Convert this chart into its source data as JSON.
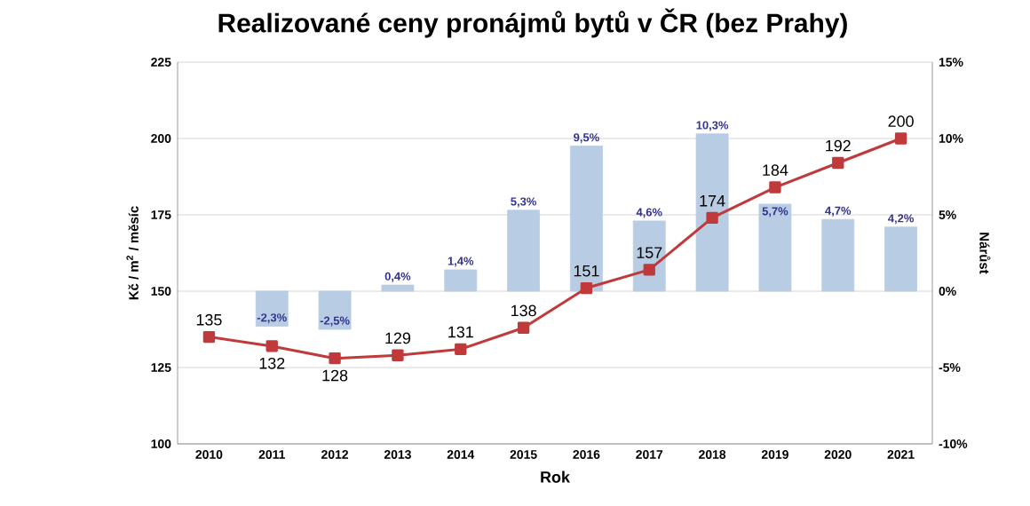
{
  "chart_data": {
    "type": "line",
    "title": "Realizované ceny pronájmů bytů v ČR (bez Prahy)",
    "xlabel": "Rok",
    "ylabel": "Kč / m$^{2}$ / měsíc",
    "y2label": "Nárůst",
    "categories": [
      "2010",
      "2011",
      "2012",
      "2013",
      "2014",
      "2015",
      "2016",
      "2017",
      "2018",
      "2019",
      "2020",
      "2021"
    ],
    "series": [
      {
        "type": "bar",
        "axis": "y2",
        "color": "#b8cce4",
        "values": [
          null,
          -2.3,
          -2.5,
          0.4,
          1.4,
          5.3,
          9.5,
          4.6,
          10.3,
          5.7,
          4.7,
          4.2
        ],
        "value_labels": [
          null,
          "-2,3%",
          "-2,5%",
          "0,4%",
          "1,4%",
          "5,3%",
          "9,5%",
          "4,6%",
          "10,3%",
          "5,7%",
          "4,7%",
          "4,2%"
        ]
      },
      {
        "color": "#c0393b",
        "marker": "square",
        "values": [
          135,
          132,
          128,
          129,
          131,
          138,
          151,
          157,
          174,
          184,
          192,
          200
        ],
        "value_labels": [
          "135",
          "132",
          "128",
          "129",
          "131",
          "138",
          "151",
          "157",
          "174",
          "184",
          "192",
          "200"
        ]
      }
    ],
    "ylim": [
      100,
      225
    ],
    "yticks": [
      100,
      125,
      150,
      175,
      200,
      225
    ],
    "y2lim": [
      -10,
      15
    ],
    "y2ticks": [
      {
        "value": -10,
        "label": "-10%"
      },
      {
        "value": -5,
        "label": "-5%"
      },
      {
        "value": 0,
        "label": "0%"
      },
      {
        "value": 5,
        "label": "5%"
      },
      {
        "value": 10,
        "label": "10%"
      },
      {
        "value": 15,
        "label": "15%"
      }
    ],
    "grid": "y",
    "legend": false
  }
}
